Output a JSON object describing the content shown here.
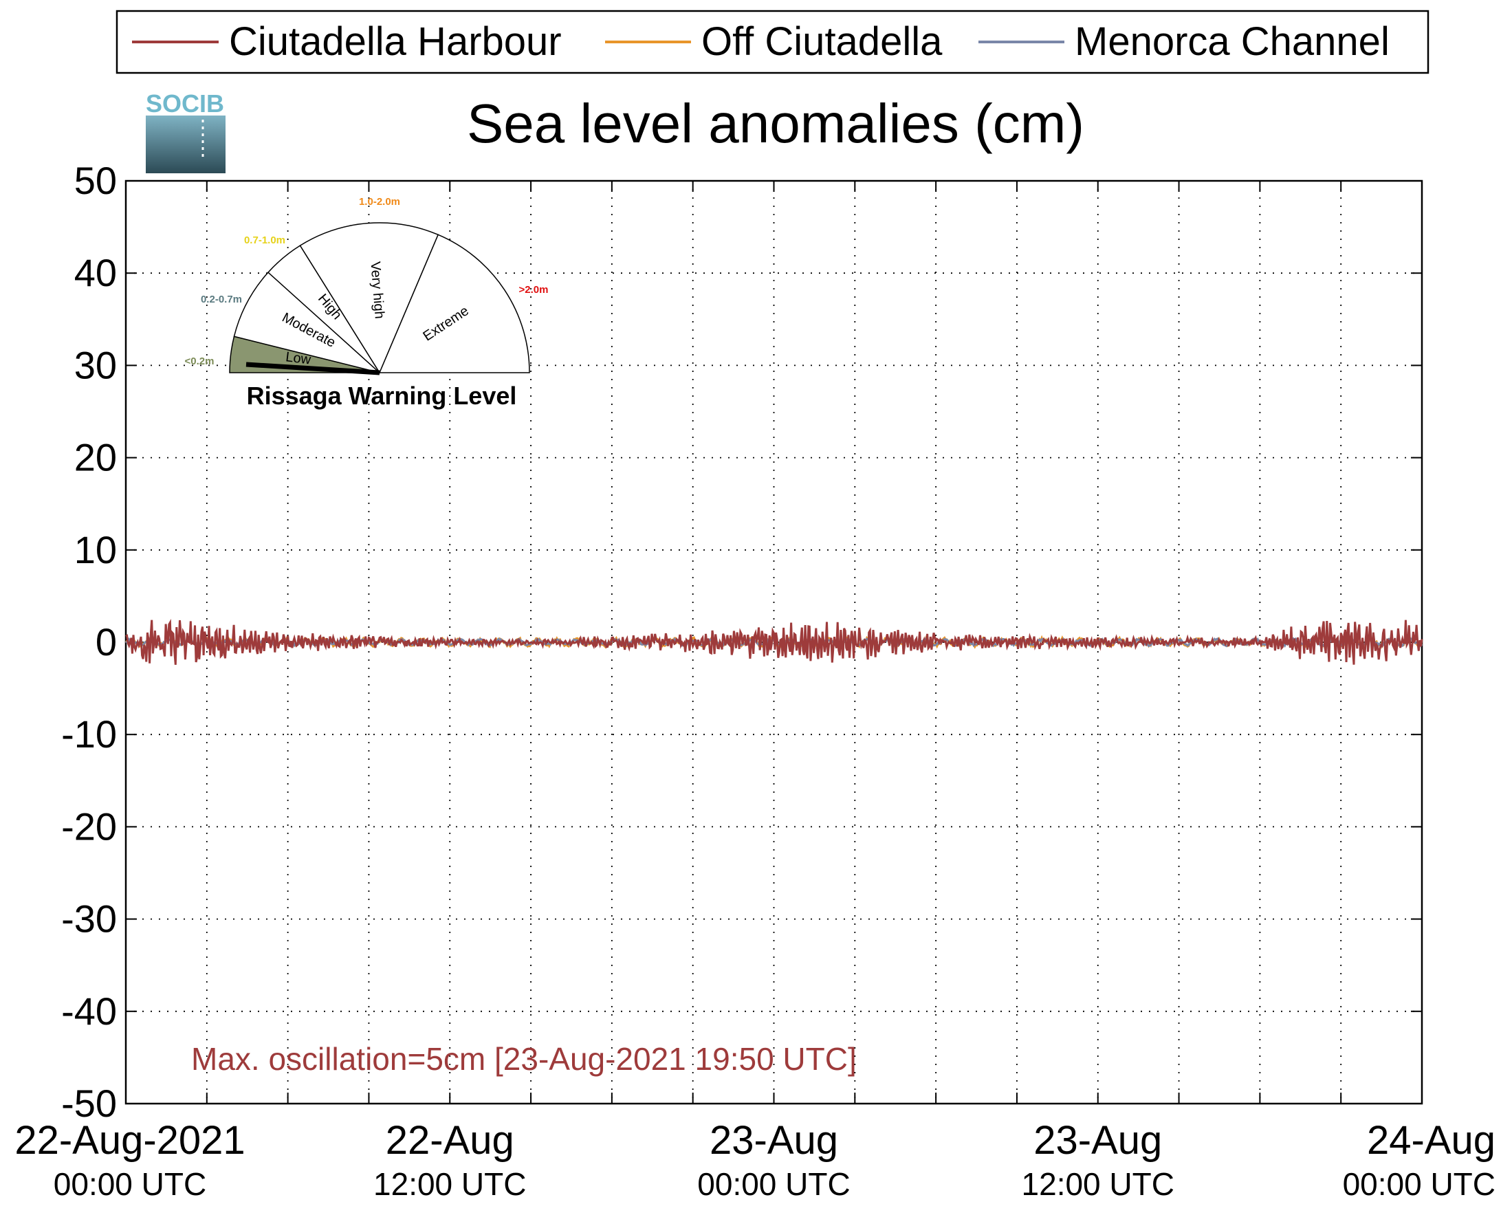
{
  "logo": {
    "text": "SOCIB"
  },
  "chart_data": {
    "type": "line",
    "title": "Sea level anomalies (cm)",
    "xlabel": "",
    "ylabel": "",
    "ylim": [
      -50,
      50
    ],
    "yticks": [
      50,
      40,
      30,
      20,
      10,
      0,
      -10,
      -20,
      -30,
      -40,
      -50
    ],
    "x_range_hours": [
      0,
      48
    ],
    "x_tick_hours": [
      0,
      12,
      24,
      36,
      48
    ],
    "x_minor_tick_hours": [
      3,
      6,
      9,
      15,
      18,
      21,
      27,
      30,
      33,
      39,
      42,
      45
    ],
    "x_tick_labels": [
      {
        "date": "22-Aug-2021",
        "time": "00:00 UTC"
      },
      {
        "date": "22-Aug",
        "time": "12:00 UTC"
      },
      {
        "date": "23-Aug",
        "time": "00:00 UTC"
      },
      {
        "date": "23-Aug",
        "time": "12:00 UTC"
      },
      {
        "date": "24-Aug",
        "time": "00:00 UTC"
      }
    ],
    "grid": true,
    "legend_position": "top",
    "series": [
      {
        "name": "Ciutadella Harbour",
        "color": "#9e3b3b",
        "envelope": [
          [
            0,
            1.5
          ],
          [
            2,
            2.5
          ],
          [
            4,
            1.5
          ],
          [
            6,
            0.9
          ],
          [
            8,
            0.7
          ],
          [
            10,
            0.5
          ],
          [
            12,
            0.4
          ],
          [
            14,
            0.3
          ],
          [
            16,
            0.3
          ],
          [
            18,
            0.6
          ],
          [
            20,
            0.8
          ],
          [
            22,
            1.2
          ],
          [
            24,
            1.6
          ],
          [
            26,
            1.8
          ],
          [
            28,
            1.4
          ],
          [
            30,
            0.8
          ],
          [
            32,
            0.6
          ],
          [
            34,
            0.6
          ],
          [
            36,
            0.5
          ],
          [
            38,
            0.4
          ],
          [
            40,
            0.4
          ],
          [
            42,
            0.4
          ],
          [
            44,
            2.0
          ],
          [
            46,
            2.0
          ],
          [
            48,
            2.0
          ]
        ]
      },
      {
        "name": "Off Ciutadella",
        "color": "#e8952b",
        "envelope": [
          [
            0,
            0.5
          ],
          [
            24,
            0.6
          ],
          [
            48,
            0.5
          ]
        ]
      },
      {
        "name": "Menorca Channel",
        "color": "#7a87a8",
        "envelope": [
          [
            0,
            0.4
          ],
          [
            24,
            0.4
          ],
          [
            48,
            0.5
          ]
        ]
      }
    ],
    "annotation": "Max. oscillation=5cm [23-Aug-2021 19:50 UTC]",
    "annotation_color": "#9e3b3b"
  },
  "gauge": {
    "title": "Rissaga Warning Level",
    "current_level": "Low",
    "sectors": [
      "Low",
      "Moderate",
      "High",
      "Very high",
      "Extreme"
    ],
    "ranges": [
      {
        "label": "<0.2m",
        "color": "#7a8a55"
      },
      {
        "label": "0.2-0.7m",
        "color": "#5a7a80"
      },
      {
        "label": "0.7-1.0m",
        "color": "#e6d21a"
      },
      {
        "label": "1.0-2.0m",
        "color": "#f08a1a"
      },
      {
        "label": ">2.0m",
        "color": "#e01010"
      }
    ]
  }
}
